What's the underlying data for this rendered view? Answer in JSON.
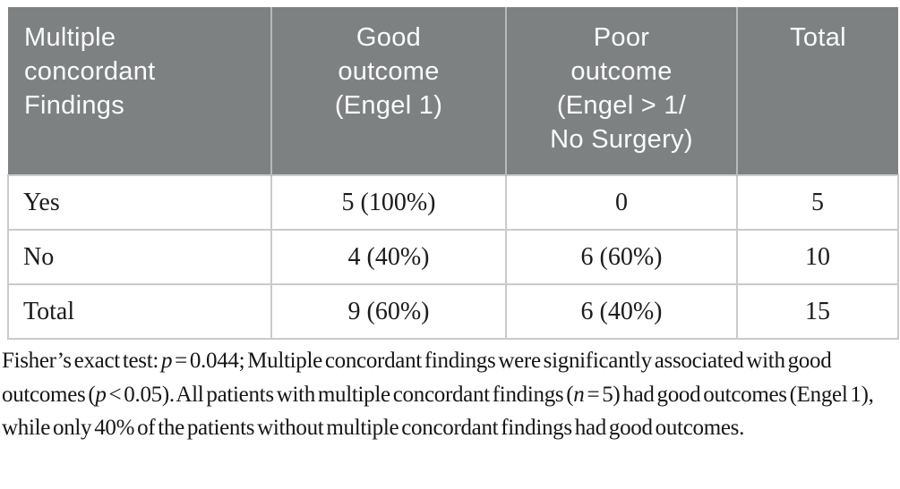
{
  "colors": {
    "page_bg": "#ffffff",
    "header_bg": "#7e8181",
    "header_text": "#fcfcfc",
    "header_divider": "#b6baba",
    "grid_border": "#c9cbcb",
    "body_text": "#1b1b1b"
  },
  "table": {
    "header": [
      "Multiple\nconcordant\nFindings",
      "Good\noutcome\n(Engel 1)",
      "Poor\noutcome\n(Engel > 1/\nNo Surgery)",
      "Total"
    ],
    "rows": [
      [
        "Yes",
        "5 (100%)",
        "0",
        "5"
      ],
      [
        "No",
        "4 (40%)",
        "6 (60%)",
        "10"
      ],
      [
        "Total",
        "9 (60%)",
        "6 (40%)",
        "15"
      ]
    ]
  },
  "footnote": {
    "segments": [
      {
        "text": "Fisher’s exact test: ",
        "italic": false
      },
      {
        "text": "p",
        "italic": true
      },
      {
        "text": " = 0.044; Multiple concordant findings were significantly associated with good outcomes (",
        "italic": false
      },
      {
        "text": "p",
        "italic": true
      },
      {
        "text": " < 0.05). All patients with multiple concordant findings (",
        "italic": false
      },
      {
        "text": "n",
        "italic": true
      },
      {
        "text": " = 5) had good outcomes (Engel 1), while only 40% of the patients without multiple concordant findings had good outcomes.",
        "italic": false
      }
    ]
  }
}
